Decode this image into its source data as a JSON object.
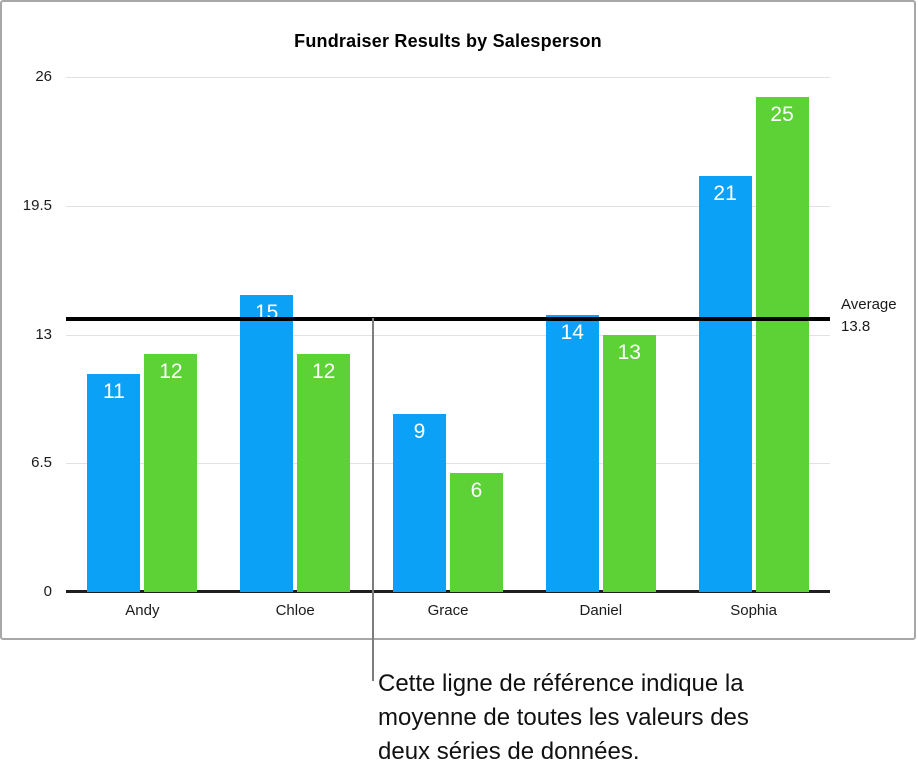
{
  "chart_data": {
    "type": "bar",
    "title": "Fundraiser Results by Salesperson",
    "categories": [
      "Andy",
      "Chloe",
      "Grace",
      "Daniel",
      "Sophia"
    ],
    "series": [
      {
        "color": "#0aa1f7",
        "values": [
          11,
          15,
          9,
          14,
          21
        ]
      },
      {
        "color": "#5dd236",
        "values": [
          12,
          12,
          6,
          13,
          25
        ]
      }
    ],
    "ylim": [
      0,
      26
    ],
    "yticks": [
      0,
      6.5,
      13,
      19.5,
      26
    ],
    "ytick_labels": [
      "0",
      "6.5",
      "13",
      "19.5",
      "26"
    ],
    "grid": true,
    "legend": "none",
    "bar_label_color": "#ffffff",
    "reference_line": {
      "value": 13.8,
      "label": "Average",
      "value_label": "13.8",
      "color": "#000000"
    }
  },
  "annotation": {
    "lines": [
      "Cette ligne de référence indique la",
      "moyenne de toutes les valeurs des",
      "deux séries de données."
    ]
  }
}
